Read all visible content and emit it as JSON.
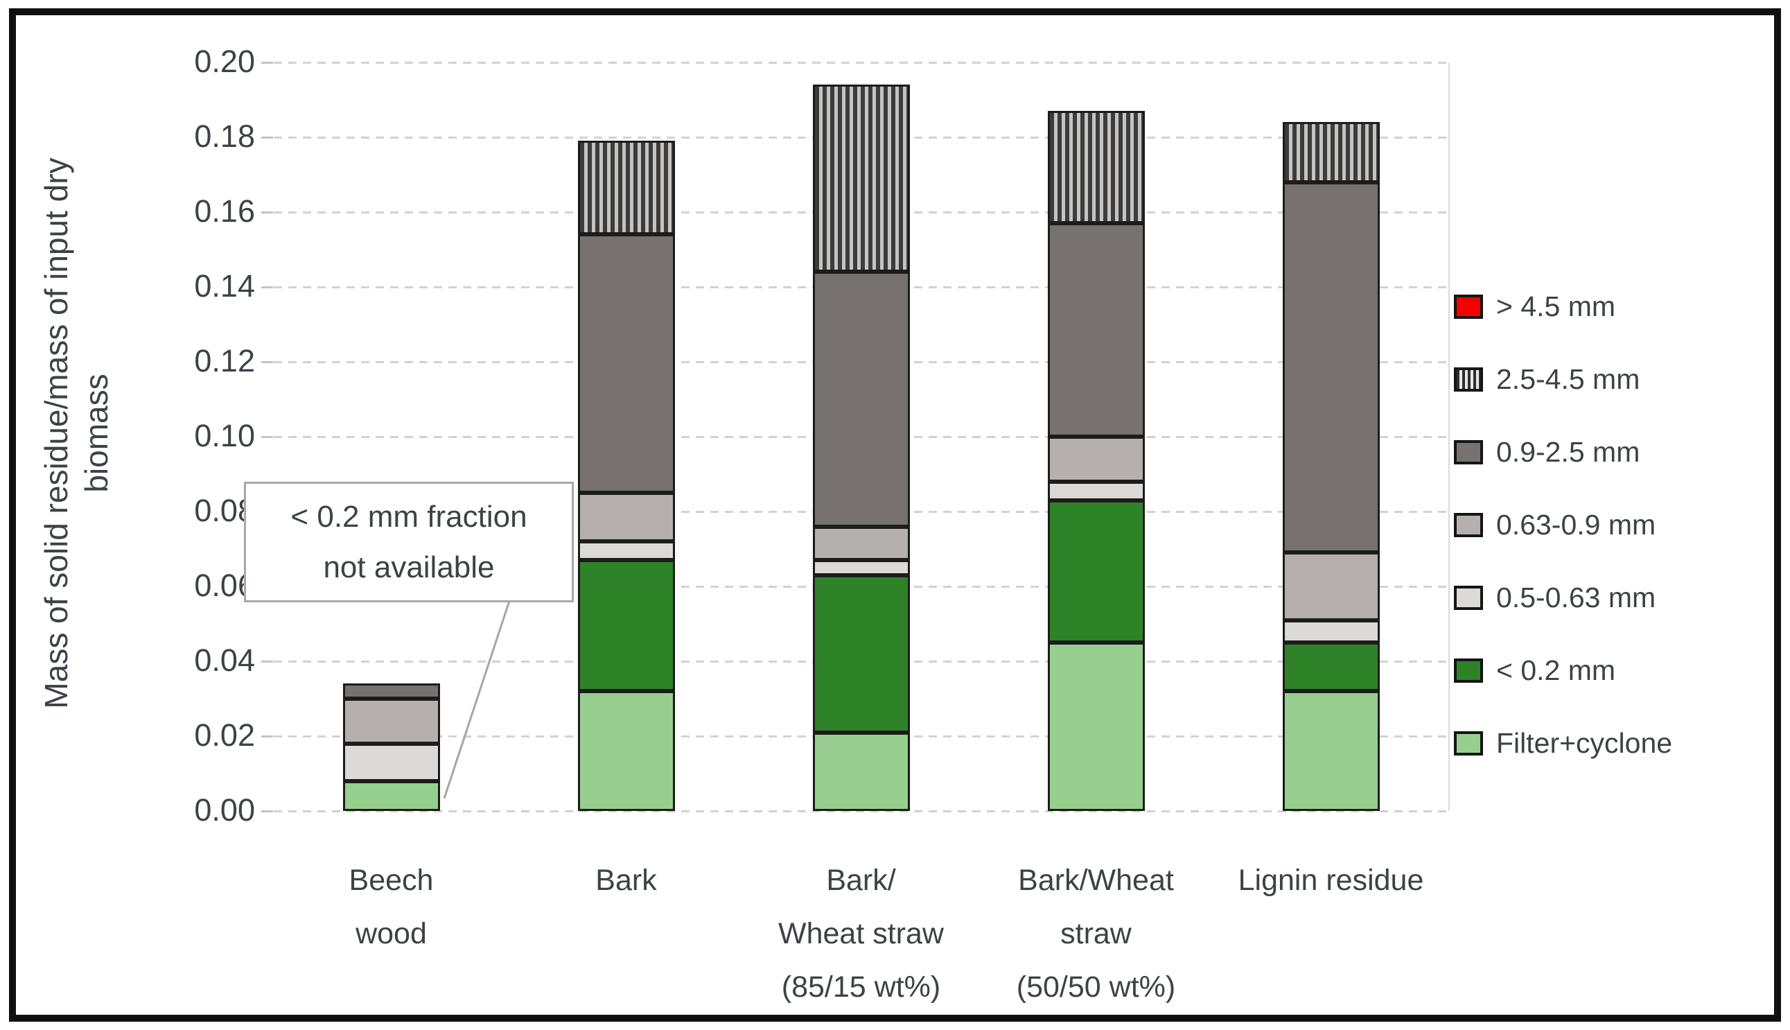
{
  "figure": {
    "y_axis_title_line1": "Mass of solid residue/mass of input dry",
    "y_axis_title_line2": "biomass",
    "annotation_line1": "< 0.2 mm fraction",
    "annotation_line2": "not available"
  },
  "chart_data": {
    "type": "bar",
    "stacked": true,
    "title": "",
    "xlabel": "",
    "ylabel": "Mass of solid residue/mass of input dry biomass",
    "ylim": [
      0,
      0.2
    ],
    "ytick_step": 0.02,
    "ytick_labels": [
      "0.00",
      "0.02",
      "0.04",
      "0.06",
      "0.08",
      "0.10",
      "0.12",
      "0.14",
      "0.16",
      "0.18",
      "0.20"
    ],
    "grid": "horizontal-dashed",
    "legend_position": "right",
    "categories": [
      "Beech wood",
      "Bark",
      "Bark/Wheat straw (85/15 wt%)",
      "Bark/Wheat straw (50/50 wt%)",
      "Lignin residue"
    ],
    "category_label_lines": [
      [
        "Beech",
        "wood"
      ],
      [
        "Bark"
      ],
      [
        "Bark/",
        "Wheat straw",
        "(85/15 wt%)"
      ],
      [
        "Bark/Wheat",
        "straw",
        "(50/50 wt%)"
      ],
      [
        "Lignin residue"
      ]
    ],
    "series": [
      {
        "name": "Filter+cyclone",
        "color": "#97cf8f",
        "pattern": "solid",
        "values": [
          0.008,
          0.032,
          0.021,
          0.045,
          0.032
        ]
      },
      {
        "name": "< 0.2 mm",
        "color": "#2e8328",
        "pattern": "solid",
        "values": [
          0,
          0.035,
          0.042,
          0.038,
          0.013
        ]
      },
      {
        "name": "0.5-0.63 mm",
        "color": "#dcdad8",
        "pattern": "solid",
        "values": [
          0.01,
          0.005,
          0.004,
          0.005,
          0.006
        ]
      },
      {
        "name": "0.63-0.9 mm",
        "color": "#b5b0ae",
        "pattern": "solid",
        "values": [
          0.012,
          0.013,
          0.009,
          0.012,
          0.018
        ]
      },
      {
        "name": "0.9-2.5 mm",
        "color": "#777170",
        "pattern": "solid",
        "values": [
          0.004,
          0.069,
          0.068,
          0.057,
          0.099
        ]
      },
      {
        "name": "2.5-4.5 mm",
        "color": "#3c3c3c",
        "pattern": "stripes",
        "values": [
          0,
          0.025,
          0.05,
          0.03,
          0.016
        ]
      },
      {
        "name": "> 4.5 mm",
        "color": "#f40000",
        "pattern": "solid",
        "values": [
          0,
          0,
          0,
          0,
          0
        ]
      }
    ],
    "totals": [
      0.034,
      0.179,
      0.194,
      0.187,
      0.184
    ],
    "annotation": "< 0.2 mm fraction not available",
    "annotation_target_category": "Beech wood"
  }
}
